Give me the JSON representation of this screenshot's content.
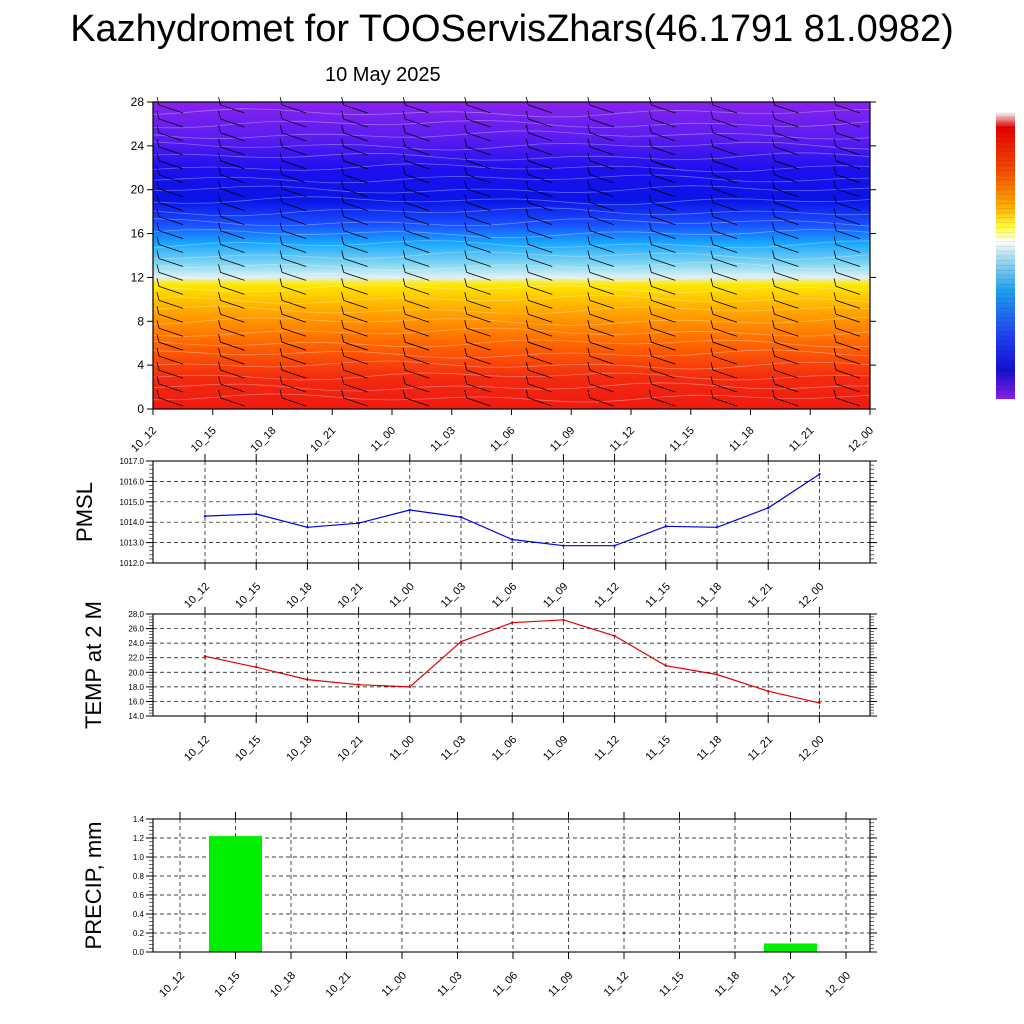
{
  "title": "Kazhydromet for TOOServisZhars(46.1791 81.0982)",
  "date": "10 May 2025",
  "colors": {
    "pmsl_line": "#0000dd",
    "temp_line": "#dd0000",
    "precip_bar": "#00ee00",
    "grid": "#000000"
  },
  "chart_data": [
    {
      "type": "heatmap",
      "name": "",
      "x_tick_labels": [
        "10_12",
        "10_15",
        "10_18",
        "10_21",
        "11_00",
        "11_03",
        "11_06",
        "11_09",
        "11_12",
        "11_15",
        "11_18",
        "11_21",
        "12_00"
      ],
      "y_tick_labels": [
        "0",
        "4",
        "8",
        "12",
        "16",
        "20",
        "24",
        "28"
      ],
      "ylim": [
        0,
        28
      ],
      "overlay": "wind barbs",
      "colorbar": "vertical, right side, purple-blue-cyan-yellow-orange-red"
    },
    {
      "type": "line",
      "ylabel": "PMSL",
      "categories": [
        "10_12",
        "10_15",
        "10_18",
        "10_21",
        "11_00",
        "11_03",
        "11_06",
        "11_09",
        "11_12",
        "11_15",
        "11_18",
        "11_21",
        "12_00"
      ],
      "values": [
        1014.3,
        1014.4,
        1013.75,
        1013.95,
        1014.6,
        1014.25,
        1013.15,
        1012.85,
        1012.85,
        1013.8,
        1013.75,
        1014.7,
        1016.35
      ],
      "ylim": [
        1012.0,
        1017.0
      ],
      "y_tick_labels": [
        "1012.0",
        "1013.0",
        "1014.0",
        "1015.0",
        "1016.0",
        "1017.0"
      ],
      "grid": true
    },
    {
      "type": "line",
      "ylabel": "TEMP at 2 M",
      "categories": [
        "10_12",
        "10_15",
        "10_18",
        "10_21",
        "11_00",
        "11_03",
        "11_06",
        "11_09",
        "11_12",
        "11_15",
        "11_18",
        "11_21",
        "12_00"
      ],
      "values": [
        22.2,
        20.7,
        19.0,
        18.3,
        18.0,
        24.2,
        26.8,
        27.2,
        25.0,
        20.9,
        19.7,
        17.4,
        15.8
      ],
      "ylim": [
        14.0,
        28.0
      ],
      "y_tick_labels": [
        "14.0",
        "16.0",
        "18.0",
        "20.0",
        "22.0",
        "24.0",
        "26.0",
        "28.0"
      ],
      "grid": true
    },
    {
      "type": "bar",
      "ylabel": "PRECIP, mm",
      "categories": [
        "10_12",
        "10_15",
        "10_18",
        "10_21",
        "11_00",
        "11_03",
        "11_06",
        "11_09",
        "11_12",
        "11_15",
        "11_18",
        "11_21",
        "12_00"
      ],
      "values": [
        0,
        1.22,
        0,
        0,
        0,
        0,
        0,
        0,
        0,
        0,
        0,
        0.09,
        0
      ],
      "ylim": [
        0,
        1.4
      ],
      "y_tick_labels": [
        "0.0",
        "0.2",
        "0.4",
        "0.6",
        "0.8",
        "1.0",
        "1.2",
        "1.4"
      ],
      "grid": true
    }
  ]
}
